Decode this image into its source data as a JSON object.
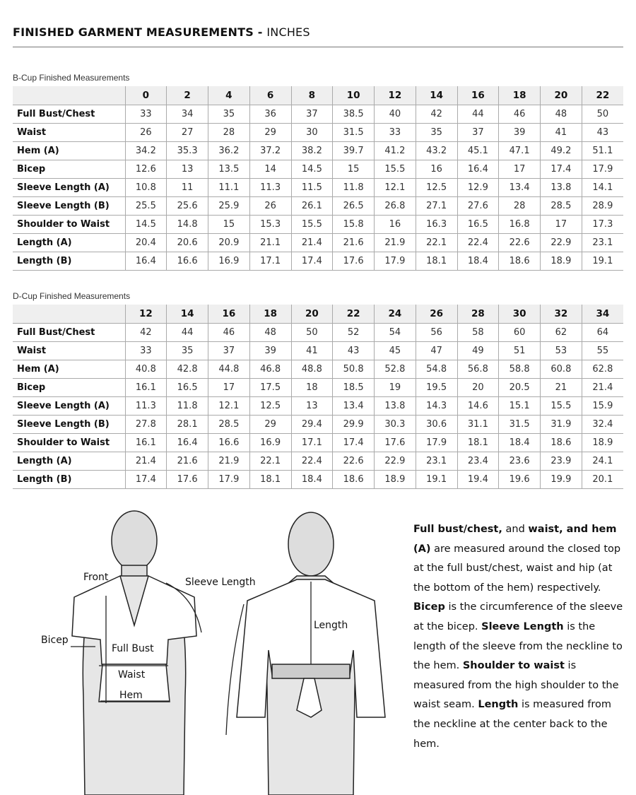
{
  "header": {
    "title_bold": "FINISHED GARMENT MEASUREMENTS - ",
    "title_light": "INCHES"
  },
  "row_labels": [
    "Full Bust/Chest",
    "Waist",
    "Hem (A)",
    "Bicep",
    "Sleeve Length (A)",
    "Sleeve Length (B)",
    "Shoulder to Waist",
    "Length (A)",
    "Length (B)"
  ],
  "b_cup": {
    "caption": "B-Cup Finished Measurements",
    "sizes": [
      "0",
      "2",
      "4",
      "6",
      "8",
      "10",
      "12",
      "14",
      "16",
      "18",
      "20",
      "22"
    ],
    "rows": [
      [
        "33",
        "34",
        "35",
        "36",
        "37",
        "38.5",
        "40",
        "42",
        "44",
        "46",
        "48",
        "50"
      ],
      [
        "26",
        "27",
        "28",
        "29",
        "30",
        "31.5",
        "33",
        "35",
        "37",
        "39",
        "41",
        "43"
      ],
      [
        "34.2",
        "35.3",
        "36.2",
        "37.2",
        "38.2",
        "39.7",
        "41.2",
        "43.2",
        "45.1",
        "47.1",
        "49.2",
        "51.1"
      ],
      [
        "12.6",
        "13",
        "13.5",
        "14",
        "14.5",
        "15",
        "15.5",
        "16",
        "16.4",
        "17",
        "17.4",
        "17.9"
      ],
      [
        "10.8",
        "11",
        "11.1",
        "11.3",
        "11.5",
        "11.8",
        "12.1",
        "12.5",
        "12.9",
        "13.4",
        "13.8",
        "14.1"
      ],
      [
        "25.5",
        "25.6",
        "25.9",
        "26",
        "26.1",
        "26.5",
        "26.8",
        "27.1",
        "27.6",
        "28",
        "28.5",
        "28.9"
      ],
      [
        "14.5",
        "14.8",
        "15",
        "15.3",
        "15.5",
        "15.8",
        "16",
        "16.3",
        "16.5",
        "16.8",
        "17",
        "17.3"
      ],
      [
        "20.4",
        "20.6",
        "20.9",
        "21.1",
        "21.4",
        "21.6",
        "21.9",
        "22.1",
        "22.4",
        "22.6",
        "22.9",
        "23.1"
      ],
      [
        "16.4",
        "16.6",
        "16.9",
        "17.1",
        "17.4",
        "17.6",
        "17.9",
        "18.1",
        "18.4",
        "18.6",
        "18.9",
        "19.1"
      ]
    ]
  },
  "d_cup": {
    "caption": "D-Cup Finished Measurements",
    "sizes": [
      "12",
      "14",
      "16",
      "18",
      "20",
      "22",
      "24",
      "26",
      "28",
      "30",
      "32",
      "34"
    ],
    "rows": [
      [
        "42",
        "44",
        "46",
        "48",
        "50",
        "52",
        "54",
        "56",
        "58",
        "60",
        "62",
        "64"
      ],
      [
        "33",
        "35",
        "37",
        "39",
        "41",
        "43",
        "45",
        "47",
        "49",
        "51",
        "53",
        "55"
      ],
      [
        "40.8",
        "42.8",
        "44.8",
        "46.8",
        "48.8",
        "50.8",
        "52.8",
        "54.8",
        "56.8",
        "58.8",
        "60.8",
        "62.8"
      ],
      [
        "16.1",
        "16.5",
        "17",
        "17.5",
        "18",
        "18.5",
        "19",
        "19.5",
        "20",
        "20.5",
        "21",
        "21.4"
      ],
      [
        "11.3",
        "11.8",
        "12.1",
        "12.5",
        "13",
        "13.4",
        "13.8",
        "14.3",
        "14.6",
        "15.1",
        "15.5",
        "15.9"
      ],
      [
        "27.8",
        "28.1",
        "28.5",
        "29",
        "29.4",
        "29.9",
        "30.3",
        "30.6",
        "31.1",
        "31.5",
        "31.9",
        "32.4"
      ],
      [
        "16.1",
        "16.4",
        "16.6",
        "16.9",
        "17.1",
        "17.4",
        "17.6",
        "17.9",
        "18.1",
        "18.4",
        "18.6",
        "18.9"
      ],
      [
        "21.4",
        "21.6",
        "21.9",
        "22.1",
        "22.4",
        "22.6",
        "22.9",
        "23.1",
        "23.4",
        "23.6",
        "23.9",
        "24.1"
      ],
      [
        "17.4",
        "17.6",
        "17.9",
        "18.1",
        "18.4",
        "18.6",
        "18.9",
        "19.1",
        "19.4",
        "19.6",
        "19.9",
        "20.1"
      ]
    ]
  },
  "illustration": {
    "front": "Front",
    "sleeve_length": "Sleeve Length",
    "bicep": "Bicep",
    "full_bust": "Full Bust",
    "waist": "Waist",
    "hem": "Hem",
    "length": "Length"
  },
  "description": [
    {
      "b": "Full bust/chest,"
    },
    {
      "t": " and "
    },
    {
      "b": "waist, and hem (A)"
    },
    {
      "t": " are measured around the closed top at the full bust/chest, waist and hip (at the bottom of the hem) respectively. "
    },
    {
      "b": "Bicep"
    },
    {
      "t": " is the circumference of the sleeve at the bicep. "
    },
    {
      "b": "Sleeve Length"
    },
    {
      "t": " is the length of the sleeve from the neckline to the hem. "
    },
    {
      "b": "Shoulder to waist"
    },
    {
      "t": " is measured from the high shoulder to the waist seam. "
    },
    {
      "b": "Length"
    },
    {
      "t": " is measured from the neckline at the center back to the hem."
    }
  ]
}
